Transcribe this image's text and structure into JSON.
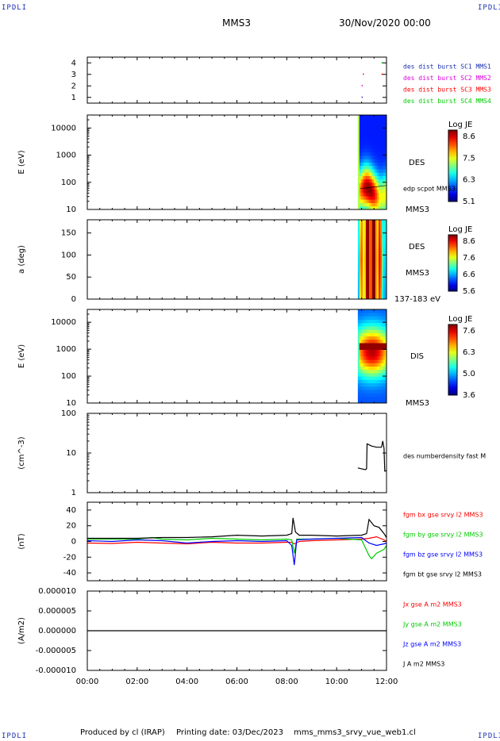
{
  "header": {
    "corner_left_top": "IPDLI",
    "corner_right_top": "IPDLI",
    "corner_left_bottom": "IPDLI",
    "corner_right_bottom": "IPDLI",
    "spacecraft": "MMS3",
    "date": "30/Nov/2020 00:00"
  },
  "footer": {
    "produced_by": "Produced by cl (IRAP)",
    "printing_date": "Printing date: 03/Dec/2023",
    "filename": "mms_mms3_srvy_vue_web1.cl"
  },
  "time_axis": {
    "ticks": [
      "00:00",
      "02:00",
      "04:00",
      "06:00",
      "08:00",
      "10:00",
      "12:00"
    ],
    "range_hours": [
      0,
      12
    ]
  },
  "colors": {
    "blue": "#0000ff",
    "magenta": "#dd00dd",
    "red": "#ff0000",
    "green": "#00cc00",
    "black": "#000000",
    "legend_blue": "#1a2fb0"
  },
  "chart_data": [
    {
      "type": "scatter",
      "name": "burst-availability",
      "ylim": [
        0.5,
        4.5
      ],
      "yticks": [
        "1",
        "2",
        "3",
        "4"
      ],
      "series": [
        {
          "name": "des dist burst SC1 MMS1",
          "color": "#1a2fb0",
          "level": 1,
          "x": [
            11.0
          ]
        },
        {
          "name": "des dist burst SC2 MMS2",
          "color": "#dd00dd",
          "level": 2,
          "x": [
            11.0
          ]
        },
        {
          "name": "des dist burst SC3 MMS3",
          "color": "#ff0000",
          "level": 3,
          "x": [
            11.05,
            11.8
          ]
        },
        {
          "name": "des dist burst SC4 MMS4",
          "color": "#00cc00",
          "level": 4,
          "x": [
            11.8
          ]
        }
      ]
    },
    {
      "type": "heatmap",
      "name": "des-energy-spectrogram",
      "ylabel": "E (eV)",
      "yscale": "log",
      "ylim": [
        10,
        30000
      ],
      "yticks": [
        "10",
        "100",
        "1000",
        "10000"
      ],
      "xrange_hours": [
        10.85,
        12.0
      ],
      "peak_value": 100,
      "label1": "DES",
      "label2": "edp scpot MMS3",
      "label3": "MMS3",
      "colorbar": {
        "title": "Log JE",
        "ticks": [
          "8.6",
          "7.5",
          "6.3",
          "5.1"
        ]
      }
    },
    {
      "type": "heatmap",
      "name": "des-pitch-angle",
      "ylabel": "a (deg)",
      "ylim": [
        0,
        180
      ],
      "yticks": [
        "0",
        "50",
        "100",
        "150"
      ],
      "xrange_hours": [
        10.85,
        12.0
      ],
      "label1": "DES",
      "label2": "MMS3",
      "label3": "137-183 eV",
      "colorbar": {
        "title": "Log JE",
        "ticks": [
          "8.6",
          "7.6",
          "6.6",
          "5.6"
        ]
      }
    },
    {
      "type": "heatmap",
      "name": "dis-energy-spectrogram",
      "ylabel": "E (eV)",
      "yscale": "log",
      "ylim": [
        10,
        30000
      ],
      "yticks": [
        "10",
        "100",
        "1000",
        "10000"
      ],
      "xrange_hours": [
        10.85,
        12.0
      ],
      "peak_value": 1200,
      "label1": "DIS",
      "label2": "MMS3",
      "colorbar": {
        "title": "Log JE",
        "ticks": [
          "7.6",
          "6.3",
          "5.0",
          "3.6"
        ]
      }
    },
    {
      "type": "line",
      "name": "density",
      "ylabel": "(cm^-3)",
      "yscale": "log",
      "ylim": [
        1,
        100
      ],
      "yticks": [
        "1",
        "10",
        "100"
      ],
      "series": [
        {
          "name": "des numberdensity fast M",
          "color": "#000000",
          "x": [
            10.85,
            11.0,
            11.15,
            11.2,
            11.22,
            11.4,
            11.6,
            11.8,
            11.85,
            11.9,
            11.93,
            12.0
          ],
          "y": [
            4.2,
            4.0,
            3.8,
            4.0,
            17,
            15,
            14,
            14,
            20,
            13,
            3.5,
            3.6
          ]
        }
      ]
    },
    {
      "type": "line",
      "name": "magnetic-field",
      "ylabel": "(nT)",
      "ylim": [
        -50,
        50
      ],
      "yticks": [
        "-40",
        "-20",
        "0",
        "20",
        "40"
      ],
      "series": [
        {
          "name": "fgm bx gse srvy l2 MMS3",
          "color": "#ff0000",
          "x": [
            0,
            1,
            2,
            3,
            4,
            5,
            6,
            7,
            8,
            8.2,
            8.3,
            8.5,
            9,
            10,
            11,
            11.3,
            11.6,
            11.9,
            12
          ],
          "y": [
            -2,
            -2.5,
            -1,
            -2,
            -3,
            -1,
            -2,
            -2,
            -1,
            -1,
            -3,
            0,
            1,
            2,
            3,
            4,
            6,
            2,
            0
          ]
        },
        {
          "name": "fgm by gse srvy l2 MMS3",
          "color": "#00cc00",
          "x": [
            0,
            1,
            2,
            2.6,
            3,
            4,
            5,
            6,
            7,
            8,
            8.2,
            8.3,
            8.4,
            9,
            10,
            11,
            11.3,
            11.4,
            11.6,
            11.9,
            12
          ],
          "y": [
            3,
            3,
            3,
            5,
            3,
            2,
            4,
            3,
            2,
            3,
            2,
            -15,
            3,
            3,
            4,
            2,
            -18,
            -22,
            -15,
            -10,
            -5
          ]
        },
        {
          "name": "fgm bz gse srvy l2 MMS3",
          "color": "#0000ff",
          "x": [
            0,
            1,
            2,
            3,
            4,
            5,
            6,
            7,
            8,
            8.2,
            8.3,
            8.4,
            9,
            10,
            11,
            11.3,
            11.6,
            11.9,
            12
          ],
          "y": [
            1,
            0,
            2,
            1,
            -2,
            0,
            1,
            0,
            1,
            -5,
            -30,
            2,
            3,
            4,
            5,
            -2,
            -5,
            -3,
            -2
          ]
        },
        {
          "name": "fgm bt gse srvy l2 MMS3",
          "color": "#000000",
          "x": [
            0,
            1,
            2,
            3,
            4,
            5,
            6,
            7,
            8,
            8.2,
            8.25,
            8.35,
            8.5,
            9,
            10,
            11,
            11.2,
            11.3,
            11.5,
            11.7,
            11.9,
            12
          ],
          "y": [
            4,
            4,
            4,
            5,
            5,
            6,
            8,
            7,
            8,
            10,
            30,
            12,
            8,
            8,
            7,
            8,
            10,
            28,
            20,
            18,
            10,
            5
          ]
        }
      ]
    },
    {
      "type": "line",
      "name": "current-density",
      "ylabel": "(A/m2)",
      "ylim": [
        -1e-05,
        1e-05
      ],
      "yticks": [
        "0.000010",
        "0.000005",
        "0.000000",
        "-0.000005",
        "-0.000010"
      ],
      "series": [
        {
          "name": "Jx gse A m2 MMS3",
          "color": "#ff0000"
        },
        {
          "name": "Jy gse A m2 MMS3",
          "color": "#00cc00"
        },
        {
          "name": "Jz gse A m2 MMS3",
          "color": "#0000ff"
        },
        {
          "name": "J A m2 MMS3",
          "color": "#000000",
          "x": [
            0,
            12
          ],
          "y": [
            0,
            0
          ]
        }
      ]
    }
  ]
}
